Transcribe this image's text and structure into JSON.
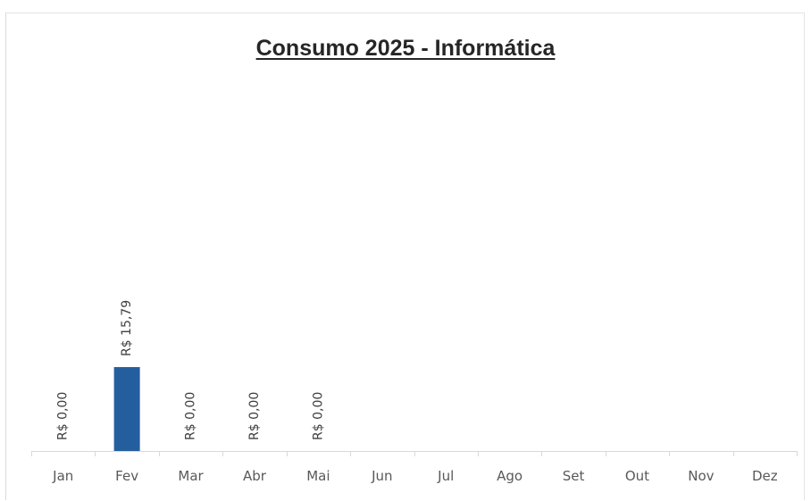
{
  "chart_data": {
    "type": "bar",
    "title": "Consumo 2025 - Informática",
    "xlabel": "",
    "ylabel": "",
    "categories": [
      "Jan",
      "Fev",
      "Mar",
      "Abr",
      "Mai",
      "Jun",
      "Jul",
      "Ago",
      "Set",
      "Out",
      "Nov",
      "Dez"
    ],
    "values": [
      0,
      15.79,
      0,
      0,
      0,
      null,
      null,
      null,
      null,
      null,
      null,
      null
    ],
    "data_labels": [
      "R$ 0,00",
      "R$ 15,79",
      "R$ 0,00",
      "R$ 0,00",
      "R$ 0,00",
      null,
      null,
      null,
      null,
      null,
      null,
      null
    ],
    "ylim": [
      0,
      60
    ],
    "grid": false,
    "legend": "none",
    "bar_color": "#255e9e"
  }
}
